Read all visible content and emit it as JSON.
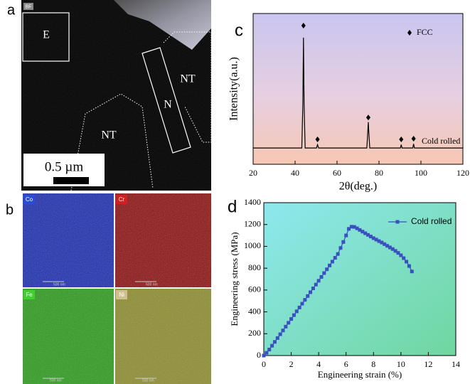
{
  "panel_labels": [
    "a",
    "b",
    "c",
    "d"
  ],
  "panel_a": {
    "mode": "BF",
    "regions": [
      "E",
      "N",
      "NT",
      "NT"
    ],
    "scale_bar": "0.5 µm"
  },
  "panel_b": {
    "maps": [
      {
        "element": "Co",
        "scale": "500 nm"
      },
      {
        "element": "Cr",
        "scale": "500 nm"
      },
      {
        "element": "Fe",
        "scale": "500 nm"
      },
      {
        "element": "Ni",
        "scale": "500 nm"
      }
    ]
  },
  "chart_data": [
    {
      "type": "line",
      "xlabel": "2θ(deg.)",
      "ylabel": "Intensity(a.u.)",
      "annotation": "Cold rolled",
      "xlim": [
        20,
        120
      ],
      "xticks": [
        20,
        40,
        60,
        80,
        100,
        120
      ],
      "ylim": [
        0,
        100
      ],
      "legend": "upper right",
      "series": [
        {
          "color": "#000000",
          "x": [
            20,
            43.2,
            43.7,
            44,
            44.3,
            44.8,
            50.2,
            50.7,
            51.2,
            74.2,
            74.6,
            74.9,
            75.2,
            75.6,
            90.2,
            90.6,
            91,
            96.1,
            96.5,
            96.9,
            120
          ],
          "values": [
            10.8,
            10.8,
            40,
            84,
            40,
            10.8,
            10.8,
            13,
            10.8,
            10.8,
            20,
            28,
            20,
            10.8,
            10.8,
            13,
            10.8,
            10.8,
            13.5,
            10.8,
            10.8
          ]
        },
        {
          "name": "FCC",
          "color": "#000000",
          "marker": "diamond",
          "x": [
            44,
            50.7,
            74.9,
            90.6,
            96.5
          ],
          "values": [
            92,
            16.5,
            31,
            16.5,
            17
          ]
        }
      ]
    },
    {
      "type": "line",
      "xlabel": "Engineering strain (%)",
      "ylabel": "Engineering stress (MPa)",
      "xlim": [
        0,
        14
      ],
      "xticks": [
        0,
        2,
        4,
        6,
        8,
        10,
        12,
        14
      ],
      "ylim": [
        0,
        1400
      ],
      "yticks": [
        0,
        200,
        400,
        600,
        800,
        1000,
        1200,
        1400
      ],
      "legend": "upper right",
      "series": [
        {
          "name": "Cold rolled",
          "color": "#3a4fc0",
          "marker": "square",
          "x": [
            0,
            0.2,
            0.4,
            0.6,
            0.8,
            1,
            1.2,
            1.4,
            1.6,
            1.8,
            2,
            2.2,
            2.4,
            2.6,
            2.8,
            3,
            3.2,
            3.4,
            3.6,
            3.8,
            4,
            4.2,
            4.4,
            4.6,
            4.8,
            5,
            5.2,
            5.4,
            5.6,
            5.8,
            6,
            6.2,
            6.4,
            6.6,
            6.8,
            7,
            7.2,
            7.4,
            7.6,
            7.8,
            8,
            8.2,
            8.4,
            8.6,
            8.8,
            9,
            9.2,
            9.4,
            9.6,
            9.8,
            10,
            10.2,
            10.4,
            10.6,
            10.8
          ],
          "values": [
            0,
            25,
            55,
            90,
            125,
            160,
            195,
            230,
            265,
            300,
            335,
            370,
            405,
            440,
            475,
            510,
            545,
            580,
            615,
            650,
            685,
            720,
            755,
            790,
            825,
            860,
            895,
            930,
            985,
            1040,
            1100,
            1160,
            1180,
            1178,
            1165,
            1150,
            1135,
            1120,
            1105,
            1090,
            1075,
            1062,
            1048,
            1035,
            1020,
            1005,
            990,
            975,
            958,
            940,
            918,
            892,
            860,
            820,
            770
          ]
        }
      ]
    }
  ]
}
